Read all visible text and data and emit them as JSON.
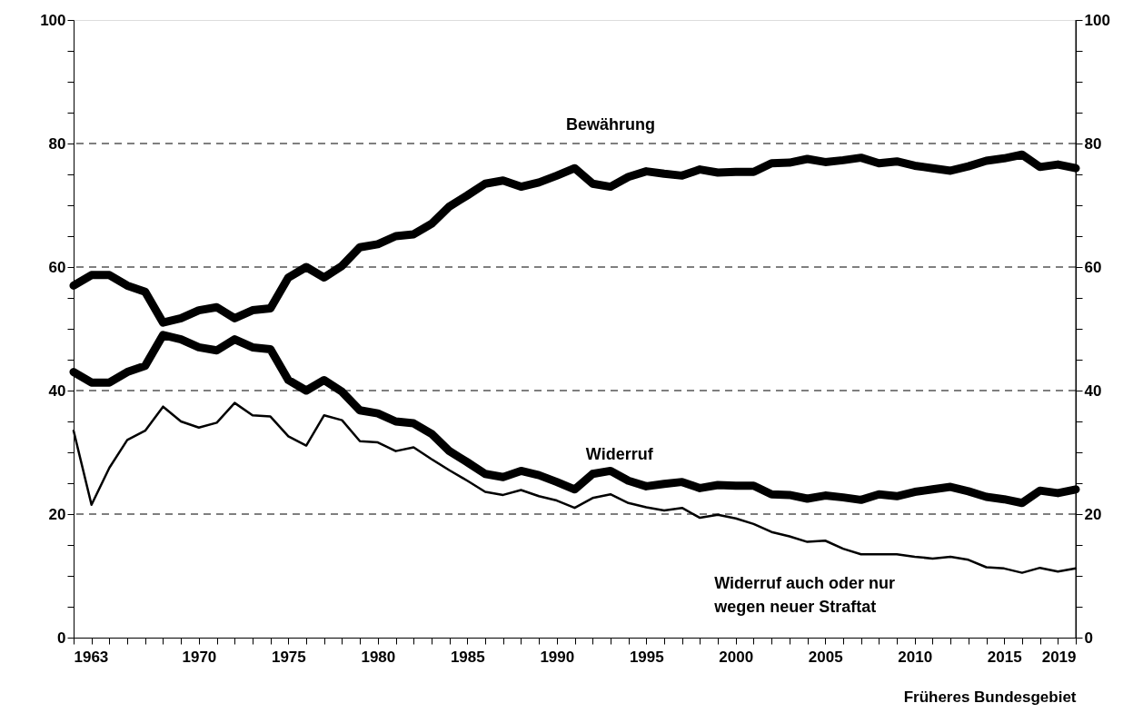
{
  "chart_data": {
    "type": "line",
    "xlabel": "Früheres Bundesgebiet",
    "x": [
      1963,
      1964,
      1965,
      1966,
      1967,
      1968,
      1969,
      1970,
      1971,
      1972,
      1973,
      1974,
      1975,
      1976,
      1977,
      1978,
      1979,
      1980,
      1981,
      1982,
      1983,
      1984,
      1985,
      1986,
      1987,
      1988,
      1989,
      1990,
      1991,
      1992,
      1993,
      1994,
      1995,
      1996,
      1997,
      1998,
      1999,
      2000,
      2001,
      2002,
      2003,
      2004,
      2005,
      2006,
      2007,
      2008,
      2009,
      2010,
      2011,
      2012,
      2013,
      2014,
      2015,
      2016,
      2017,
      2018,
      2019
    ],
    "series": [
      {
        "name": "Bewährung",
        "color": "#000000",
        "values": [
          57,
          58.7,
          58.7,
          57,
          56,
          51,
          51.7,
          53,
          53.5,
          51.7,
          53,
          53.3,
          58.3,
          60,
          58.3,
          60.2,
          63.2,
          63.7,
          65,
          65.3,
          67,
          69.8,
          71.6,
          73.5,
          74,
          73,
          73.7,
          74.8,
          76,
          73.5,
          73,
          74.6,
          75.5,
          75.1,
          74.8,
          75.8,
          75.3,
          75.4,
          75.4,
          76.8,
          76.9,
          77.5,
          77,
          77.3,
          77.7,
          76.8,
          77.1,
          76.4,
          76,
          75.6,
          76.3,
          77.2,
          77.6,
          78.2,
          76.2,
          76.6,
          76
        ]
      },
      {
        "name": "Widerruf",
        "color": "#000000",
        "values": [
          43,
          41.3,
          41.3,
          43,
          44,
          49,
          48.3,
          47,
          46.5,
          48.3,
          47,
          46.7,
          41.7,
          40,
          41.7,
          39.8,
          36.8,
          36.3,
          35,
          34.7,
          33,
          30.2,
          28.4,
          26.5,
          26,
          27,
          26.3,
          25.2,
          24,
          26.5,
          27,
          25.4,
          24.5,
          24.9,
          25.2,
          24.2,
          24.7,
          24.6,
          24.6,
          23.2,
          23.1,
          22.5,
          23,
          22.7,
          22.3,
          23.2,
          22.9,
          23.6,
          24,
          24.4,
          23.7,
          22.8,
          22.4,
          21.8,
          23.8,
          23.4,
          24
        ]
      },
      {
        "name": "Widerruf auch oder nur wegen neuer Straftat",
        "color": "#000000",
        "values": [
          33.5,
          21.5,
          27.5,
          32,
          33.5,
          37.4,
          35,
          34,
          34.8,
          38,
          36,
          35.8,
          32.6,
          31.1,
          36,
          35.2,
          31.8,
          31.6,
          30.2,
          30.8,
          28.9,
          27.1,
          25.4,
          23.6,
          23.1,
          23.9,
          22.9,
          22.2,
          21,
          22.6,
          23.2,
          21.8,
          21.1,
          20.6,
          21,
          19.4,
          19.9,
          19.3,
          18.4,
          17.1,
          16.4,
          15.5,
          15.7,
          14.4,
          13.5,
          13.5,
          13.5,
          13.1,
          12.8,
          13.1,
          12.6,
          11.4,
          11.2,
          10.5,
          11.3,
          10.7,
          11.2
        ]
      }
    ],
    "xlim": [
      1963,
      2019
    ],
    "xticks": [
      1963,
      {
        "value": 1964,
        "label": null
      },
      {
        "value": 1965,
        "label": null
      },
      {
        "value": 1966,
        "label": null
      },
      {
        "value": 1967,
        "label": null
      },
      {
        "value": 1968,
        "label": null
      },
      {
        "value": 1969,
        "label": null
      },
      1970,
      {
        "value": 1971,
        "label": null
      },
      {
        "value": 1972,
        "label": null
      },
      {
        "value": 1973,
        "label": null
      },
      {
        "value": 1974,
        "label": null
      },
      1975,
      {
        "value": 1976,
        "label": null
      },
      {
        "value": 1977,
        "label": null
      },
      {
        "value": 1978,
        "label": null
      },
      {
        "value": 1979,
        "label": null
      },
      1980,
      {
        "value": 1981,
        "label": null
      },
      {
        "value": 1982,
        "label": null
      },
      {
        "value": 1983,
        "label": null
      },
      {
        "value": 1984,
        "label": null
      },
      1985,
      {
        "value": 1986,
        "label": null
      },
      {
        "value": 1987,
        "label": null
      },
      {
        "value": 1988,
        "label": null
      },
      {
        "value": 1989,
        "label": null
      },
      1990,
      {
        "value": 1991,
        "label": null
      },
      {
        "value": 1992,
        "label": null
      },
      {
        "value": 1993,
        "label": null
      },
      {
        "value": 1994,
        "label": null
      },
      1995,
      {
        "value": 1996,
        "label": null
      },
      {
        "value": 1997,
        "label": null
      },
      {
        "value": 1998,
        "label": null
      },
      {
        "value": 1999,
        "label": null
      },
      2000,
      {
        "value": 2001,
        "label": null
      },
      {
        "value": 2002,
        "label": null
      },
      {
        "value": 2003,
        "label": null
      },
      {
        "value": 2004,
        "label": null
      },
      2005,
      {
        "value": 2006,
        "label": null
      },
      {
        "value": 2007,
        "label": null
      },
      {
        "value": 2008,
        "label": null
      },
      {
        "value": 2009,
        "label": null
      },
      2010,
      {
        "value": 2011,
        "label": null
      },
      {
        "value": 2012,
        "label": null
      },
      {
        "value": 2013,
        "label": null
      },
      {
        "value": 2014,
        "label": null
      },
      2015,
      {
        "value": 2016,
        "label": null
      },
      {
        "value": 2017,
        "label": null
      },
      {
        "value": 2018,
        "label": null
      },
      2019
    ],
    "ylim": [
      0,
      100
    ],
    "yticks": [
      0,
      {
        "value": 5,
        "label": null
      },
      {
        "value": 10,
        "label": null
      },
      {
        "value": 15,
        "label": null
      },
      20,
      {
        "value": 25,
        "label": null
      },
      {
        "value": 30,
        "label": null
      },
      {
        "value": 35,
        "label": null
      },
      40,
      {
        "value": 45,
        "label": null
      },
      {
        "value": 50,
        "label": null
      },
      {
        "value": 55,
        "label": null
      },
      60,
      {
        "value": 65,
        "label": null
      },
      {
        "value": 70,
        "label": null
      },
      {
        "value": 75,
        "label": null
      },
      80,
      {
        "value": 85,
        "label": null
      },
      {
        "value": 90,
        "label": null
      },
      {
        "value": 95,
        "label": null
      },
      100
    ],
    "y2lim": [
      0,
      100
    ],
    "y2ticks": [
      0,
      {
        "value": 5,
        "label": null
      },
      {
        "value": 10,
        "label": null
      },
      {
        "value": 15,
        "label": null
      },
      20,
      {
        "value": 25,
        "label": null
      },
      {
        "value": 30,
        "label": null
      },
      {
        "value": 35,
        "label": null
      },
      40,
      {
        "value": 45,
        "label": null
      },
      {
        "value": 50,
        "label": null
      },
      {
        "value": 55,
        "label": null
      },
      60,
      {
        "value": 65,
        "label": null
      },
      {
        "value": 70,
        "label": null
      },
      {
        "value": 75,
        "label": null
      },
      80,
      {
        "value": 85,
        "label": null
      },
      {
        "value": 90,
        "label": null
      },
      {
        "value": 95,
        "label": null
      },
      100
    ],
    "grid": "y",
    "legend": false,
    "marker": "none",
    "line_style": "solid"
  }
}
